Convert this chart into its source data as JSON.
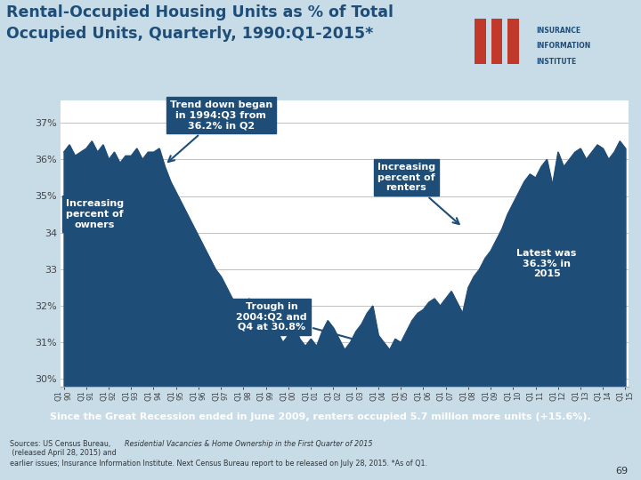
{
  "title_line1": "Rental-Occupied Housing Units as % of Total",
  "title_line2": "Occupied Units, Quarterly, 1990:Q1-2015*",
  "title_color": "#1e4d78",
  "bg_color_top": "#c8dce8",
  "bg_color_chart": "#ffffff",
  "line_color": "#1e4d78",
  "fill_color": "#1e4d78",
  "ylim_low": 29.8,
  "ylim_high": 37.6,
  "yticks": [
    30,
    31,
    32,
    33,
    34,
    35,
    36,
    37
  ],
  "ytick_labels": [
    "30%",
    "31%",
    "32%",
    "33",
    "34",
    "35%",
    "36%",
    "37%"
  ],
  "orange_color": "#e06000",
  "orange_text": "Since the Great Recession ended in June 2009, renters occupied 5.7 million more units (+15.6%).",
  "source_text1": "Sources: US Census Bureau, ",
  "source_italic": "Residential Vacancies & Home Ownership in the First Quarter of 2015",
  "source_text2": " (released April 28, 2015) and",
  "source_text3": "earlier issues; Insurance Information Institute. Next Census Bureau report to be released on July 28, 2015. *As of Q1.",
  "page_num": "69",
  "ann_box_color": "#1e4d78",
  "ann_text_color": "#ffffff",
  "values": [
    36.2,
    36.4,
    36.1,
    36.2,
    36.3,
    36.5,
    36.2,
    36.4,
    36.0,
    36.2,
    35.9,
    36.1,
    36.1,
    36.3,
    36.0,
    36.2,
    36.2,
    36.3,
    35.8,
    35.4,
    35.1,
    34.8,
    34.5,
    34.2,
    33.9,
    33.6,
    33.3,
    33.0,
    32.8,
    32.5,
    32.2,
    31.9,
    31.9,
    32.2,
    31.7,
    31.4,
    31.5,
    31.8,
    31.3,
    31.0,
    31.2,
    31.5,
    31.1,
    30.9,
    31.1,
    30.9,
    31.3,
    31.6,
    31.4,
    31.1,
    30.8,
    31.0,
    31.3,
    31.5,
    31.8,
    32.0,
    31.2,
    31.0,
    30.8,
    31.1,
    31.0,
    31.3,
    31.6,
    31.8,
    31.9,
    32.1,
    32.2,
    32.0,
    32.2,
    32.4,
    32.1,
    31.8,
    32.5,
    32.8,
    33.0,
    33.3,
    33.5,
    33.8,
    34.1,
    34.5,
    34.8,
    35.1,
    35.4,
    35.6,
    35.5,
    35.8,
    36.0,
    35.3,
    36.2,
    35.8,
    36.0,
    36.2,
    36.3,
    36.0,
    36.2,
    36.4,
    36.3,
    36.0,
    36.2,
    36.5,
    36.3
  ],
  "x_tick_positions": [
    0,
    4,
    8,
    12,
    16,
    20,
    24,
    28,
    32,
    36,
    40,
    44,
    48,
    52,
    56,
    60,
    64,
    68,
    72,
    76,
    80,
    84,
    88,
    92,
    96,
    100
  ],
  "x_tick_labels": [
    "Q1\n90",
    "Q1\n91",
    "Q1\n92",
    "Q1\n93",
    "Q1\n94",
    "Q1\n95",
    "Q1\n96",
    "Q1\n97",
    "Q1\n98",
    "Q1\n99",
    "Q1\n00",
    "Q1\n01",
    "Q1\n02",
    "Q1\n03",
    "Q1\n04",
    "Q1\n05",
    "Q1\n06",
    "Q1\n07",
    "Q1\n08",
    "Q1\n09",
    "Q1\n10",
    "Q1\n11",
    "Q1\n12",
    "Q1\n13",
    "Q1\n14",
    "Q1\n15"
  ]
}
